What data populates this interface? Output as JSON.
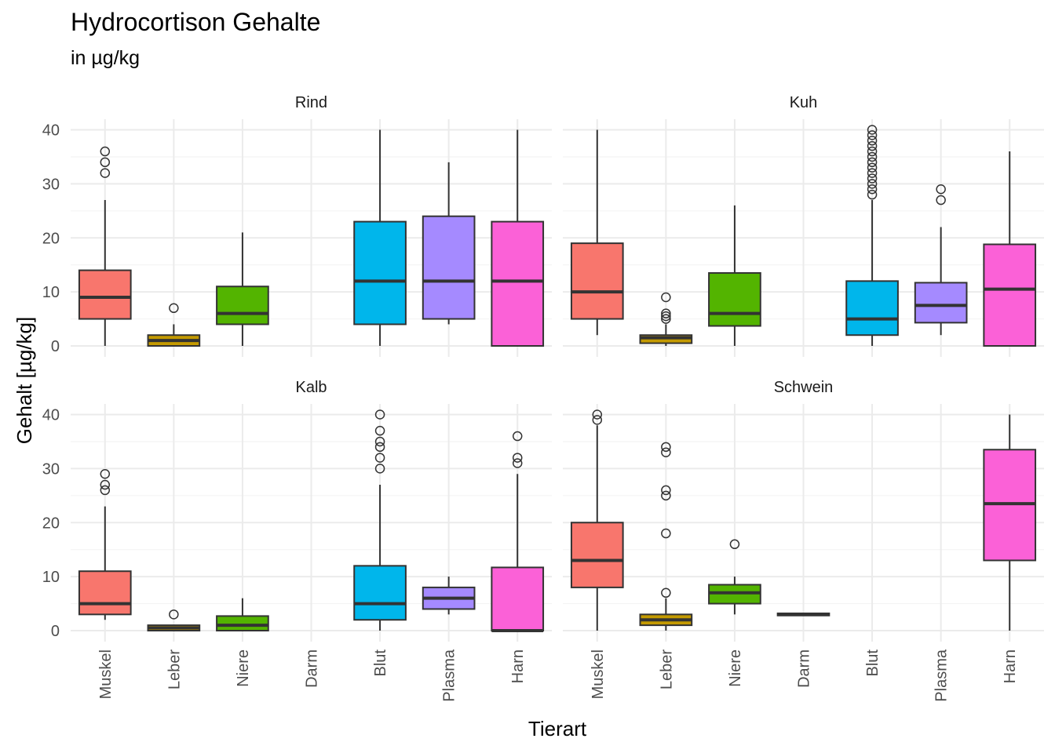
{
  "chart_data": {
    "type": "boxplot",
    "title": "Hydrocortison Gehalte",
    "subtitle": "in µg/kg",
    "xlabel": "Tierart",
    "ylabel": "Gehalt [µg/kg]",
    "ylim": [
      0,
      40
    ],
    "yticks": [
      0,
      10,
      20,
      30,
      40
    ],
    "categories": [
      "Muskel",
      "Leber",
      "Niere",
      "Darm",
      "Blut",
      "Plasma",
      "Harn"
    ],
    "colors": {
      "Muskel": "#F8766D",
      "Leber": "#C49A00",
      "Niere": "#53B400",
      "Darm": "#00C094",
      "Blut": "#00B6EB",
      "Plasma": "#A58AFF",
      "Harn": "#FB61D7"
    },
    "grid": true,
    "legend": "none",
    "panels": [
      {
        "name": "Rind",
        "boxes": {
          "Muskel": {
            "lower": 0,
            "q1": 5,
            "median": 9,
            "q3": 14,
            "upper": 27,
            "outliers": [
              32,
              34,
              36
            ]
          },
          "Leber": {
            "lower": 0,
            "q1": 0,
            "median": 1,
            "q3": 2,
            "upper": 4,
            "outliers": [
              7
            ]
          },
          "Niere": {
            "lower": 0,
            "q1": 4,
            "median": 6,
            "q3": 11,
            "upper": 21,
            "outliers": []
          },
          "Blut": {
            "lower": 0,
            "q1": 4,
            "median": 12,
            "q3": 23,
            "upper": 40,
            "outliers": []
          },
          "Plasma": {
            "lower": 4,
            "q1": 5,
            "median": 12,
            "q3": 24,
            "upper": 34,
            "outliers": []
          },
          "Harn": {
            "lower": 0,
            "q1": 0,
            "median": 12,
            "q3": 23,
            "upper": 40,
            "outliers": []
          }
        }
      },
      {
        "name": "Kuh",
        "boxes": {
          "Muskel": {
            "lower": 2,
            "q1": 5,
            "median": 10,
            "q3": 19,
            "upper": 40,
            "outliers": []
          },
          "Leber": {
            "lower": 0,
            "q1": 0.5,
            "median": 1.5,
            "q3": 2,
            "upper": 4,
            "outliers": [
              5,
              5.5,
              6,
              9
            ]
          },
          "Niere": {
            "lower": 0,
            "q1": 3.7,
            "median": 6,
            "q3": 13.5,
            "upper": 26,
            "outliers": []
          },
          "Blut": {
            "lower": 0,
            "q1": 2,
            "median": 5,
            "q3": 12,
            "upper": 27,
            "outliers": [
              28,
              29,
              30,
              31,
              32,
              33,
              34,
              35,
              36,
              37,
              38,
              39,
              40
            ]
          },
          "Plasma": {
            "lower": 2,
            "q1": 4.3,
            "median": 7.5,
            "q3": 11.7,
            "upper": 22,
            "outliers": [
              27,
              29
            ]
          },
          "Harn": {
            "lower": 0,
            "q1": 0,
            "median": 10.5,
            "q3": 18.8,
            "upper": 36,
            "outliers": []
          }
        }
      },
      {
        "name": "Kalb",
        "boxes": {
          "Muskel": {
            "lower": 2,
            "q1": 3,
            "median": 5,
            "q3": 11,
            "upper": 23,
            "outliers": [
              26,
              27,
              29
            ]
          },
          "Leber": {
            "lower": 0,
            "q1": 0,
            "median": 0.5,
            "q3": 1,
            "upper": 1,
            "outliers": [
              3
            ]
          },
          "Niere": {
            "lower": 0,
            "q1": 0,
            "median": 1,
            "q3": 2.7,
            "upper": 6,
            "outliers": []
          },
          "Blut": {
            "lower": 0,
            "q1": 2,
            "median": 5,
            "q3": 12,
            "upper": 27,
            "outliers": [
              30,
              32,
              34,
              35,
              37,
              40
            ]
          },
          "Plasma": {
            "lower": 3,
            "q1": 4,
            "median": 6,
            "q3": 8,
            "upper": 10,
            "outliers": []
          },
          "Harn": {
            "lower": 0,
            "q1": 0,
            "median": 0,
            "q3": 11.7,
            "upper": 29,
            "outliers": [
              31,
              32,
              36
            ]
          }
        }
      },
      {
        "name": "Schwein",
        "boxes": {
          "Muskel": {
            "lower": 0,
            "q1": 8,
            "median": 13,
            "q3": 20,
            "upper": 38,
            "outliers": [
              39,
              40
            ]
          },
          "Leber": {
            "lower": 0,
            "q1": 1,
            "median": 2,
            "q3": 3,
            "upper": 6,
            "outliers": [
              7,
              18,
              25,
              26,
              33,
              34
            ]
          },
          "Niere": {
            "lower": 3,
            "q1": 5,
            "median": 7,
            "q3": 8.5,
            "upper": 10,
            "outliers": [
              16
            ]
          },
          "Darm": {
            "lower": 3,
            "q1": 2.8,
            "median": 3,
            "q3": 3.2,
            "upper": 3,
            "outliers": []
          },
          "Harn": {
            "lower": 0,
            "q1": 13,
            "median": 23.5,
            "q3": 33.5,
            "upper": 40,
            "outliers": []
          }
        }
      }
    ]
  }
}
